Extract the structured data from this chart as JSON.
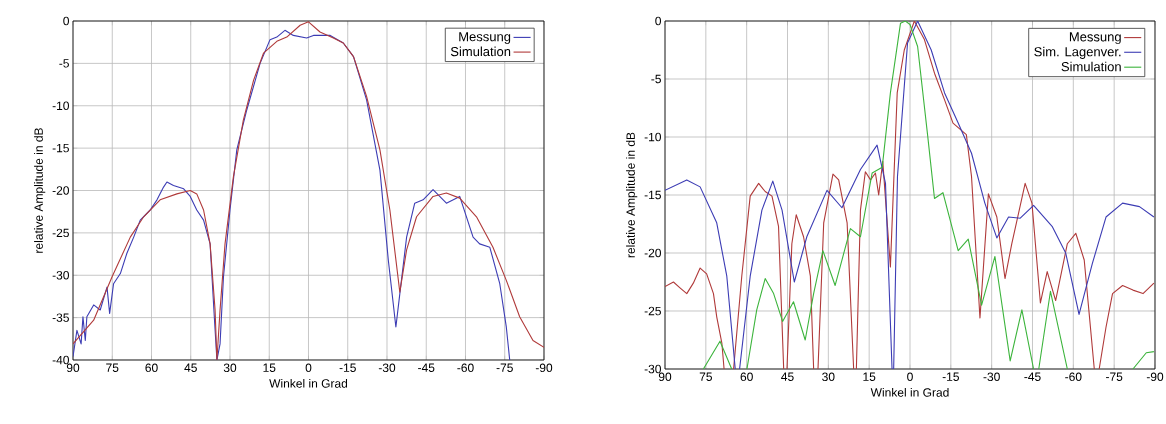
{
  "chart_data": [
    {
      "type": "line",
      "xlabel": "Winkel in Grad",
      "ylabel": "relative Amplitude in dB",
      "xlim": [
        90,
        -90
      ],
      "xticks": [
        90,
        75,
        60,
        45,
        30,
        15,
        0,
        -15,
        -30,
        -45,
        -60,
        -75,
        -90
      ],
      "ylim": [
        -40,
        0
      ],
      "yticks": [
        -40,
        -35,
        -30,
        -25,
        -20,
        -15,
        -10,
        -5,
        0
      ],
      "grid": true,
      "legend": "top right",
      "series": [
        {
          "name": "Messung",
          "color": "#3c3cb4",
          "x": [
            90,
            88.5,
            86.9,
            86.2,
            85.3,
            84.7,
            82.1,
            79.6,
            77,
            76,
            74.5,
            71.9,
            69.4,
            66.8,
            64.3,
            60.5,
            57.9,
            55.4,
            54.1,
            51.6,
            47.7,
            45.2,
            42.7,
            40.1,
            37.6,
            36,
            35,
            33.8,
            32.5,
            30,
            27.4,
            23.6,
            18.5,
            14.7,
            12.1,
            9,
            5.8,
            0.7,
            -1.9,
            -8.3,
            -13.3,
            -17.2,
            -22.2,
            -27.3,
            -30.5,
            -33.4,
            -34.9,
            -37.5,
            -40.6,
            -43.8,
            -47.6,
            -52.7,
            -57.8,
            -62.9,
            -65.4,
            -69.3,
            -73.1,
            -75.6,
            -76.9
          ],
          "values": [
            -39.6,
            -36.5,
            -38.1,
            -34.9,
            -37.7,
            -34.9,
            -33.5,
            -34.1,
            -31.4,
            -34.5,
            -31,
            -29.8,
            -27.4,
            -25.5,
            -23.5,
            -22.3,
            -21.1,
            -19.6,
            -19,
            -19.4,
            -19.8,
            -20.7,
            -22.3,
            -23.5,
            -26.3,
            -34.9,
            -40,
            -38.1,
            -30.2,
            -22.3,
            -15.2,
            -10.5,
            -5,
            -2.2,
            -1.9,
            -1.1,
            -1.7,
            -2,
            -1.7,
            -1.7,
            -2.6,
            -4.2,
            -9.3,
            -17.6,
            -28.2,
            -36.1,
            -32.2,
            -25.5,
            -21.5,
            -21.1,
            -19.9,
            -21.5,
            -20.7,
            -25.5,
            -26.3,
            -26.7,
            -31,
            -36.1,
            -40
          ]
        },
        {
          "name": "Simulation",
          "color": "#b03a3a",
          "x": [
            90,
            82.1,
            75.1,
            68.1,
            63,
            56.7,
            50.3,
            45.2,
            42.7,
            40.1,
            37.6,
            35.7,
            35,
            33.8,
            31.9,
            28.7,
            24.9,
            21,
            17.2,
            12.1,
            8.3,
            3.2,
            0,
            -4.4,
            -9.5,
            -13.3,
            -17.2,
            -22.2,
            -27.3,
            -31.1,
            -34.9,
            -37.5,
            -41.3,
            -47.6,
            -52.7,
            -57.8,
            -64.2,
            -70.5,
            -75.6,
            -80.7,
            -85.8,
            -90
          ],
          "values": [
            -38.1,
            -35.3,
            -30.2,
            -25.5,
            -23.1,
            -21.1,
            -20.4,
            -20,
            -20.4,
            -22.3,
            -26.3,
            -34.1,
            -40,
            -34.1,
            -26.3,
            -18.4,
            -11.7,
            -7,
            -3.8,
            -2.4,
            -1.9,
            -0.5,
            -0.1,
            -1.3,
            -2,
            -2.6,
            -4.2,
            -8.9,
            -15.2,
            -22.3,
            -32,
            -27,
            -23.1,
            -20.7,
            -20.3,
            -20.9,
            -23.1,
            -26.7,
            -30.6,
            -34.9,
            -37.7,
            -38.5
          ]
        }
      ]
    },
    {
      "type": "line",
      "xlabel": "Winkel in Grad",
      "ylabel": "relative Amplitude in dB",
      "xlim": [
        90,
        -90
      ],
      "xticks": [
        90,
        75,
        60,
        45,
        30,
        15,
        0,
        -15,
        -30,
        -45,
        -60,
        -75,
        -90
      ],
      "ylim": [
        -30,
        0
      ],
      "yticks": [
        -30,
        -25,
        -20,
        -15,
        -10,
        -5,
        0
      ],
      "grid": true,
      "legend": "top right",
      "series": [
        {
          "name": "Messung",
          "color": "#b03a3a",
          "x": [
            90,
            86.9,
            84.5,
            82,
            79.6,
            77.1,
            74.7,
            72.2,
            71,
            69.1,
            68.3,
            66.5,
            64.8,
            61.8,
            58.7,
            55.6,
            53.2,
            50.7,
            48.3,
            46.4,
            45.8,
            45.2,
            43.4,
            41.8,
            39.1,
            36.6,
            35.4,
            34.6,
            33.8,
            31.7,
            28.3,
            26.2,
            23.1,
            20.7,
            20.2,
            19.7,
            18.2,
            16.4,
            14.5,
            12.7,
            11.5,
            10,
            7.2,
            4.7,
            2.1,
            -1.6,
            -5.3,
            -9,
            -12.7,
            -15.8,
            -20.7,
            -22.6,
            -25.7,
            -28.8,
            -31.9,
            -34.9,
            -37.4,
            -42.3,
            -44.8,
            -47.9,
            -50.4,
            -53.5,
            -57.8,
            -60.9,
            -64,
            -67.7,
            -68.6,
            -69.5,
            -72,
            -74.4,
            -78.1,
            -81.9,
            -85.6,
            -89.6
          ],
          "values": [
            -22.9,
            -22.5,
            -23,
            -23.5,
            -22.6,
            -21.3,
            -21.8,
            -23.5,
            -25.5,
            -27.8,
            -30,
            null,
            -30,
            -22,
            -15.1,
            -14,
            -14.7,
            -15.1,
            -17.7,
            -30,
            null,
            -30,
            -19.2,
            -16.7,
            -18.6,
            -22,
            -30,
            null,
            -30,
            -17.4,
            -13.2,
            -13.7,
            -17.4,
            -30,
            null,
            -30,
            -16.3,
            -13,
            -13.7,
            -13.1,
            -15,
            -12.1,
            -21.2,
            -6.2,
            -2.5,
            0,
            -1.6,
            -4.5,
            -6.8,
            -8.8,
            -9.8,
            -13.4,
            -25.6,
            -14.9,
            -16.9,
            -22.2,
            -19.2,
            -14,
            -15.7,
            -24.3,
            -21.6,
            -24.1,
            -19.2,
            -18.3,
            -20.6,
            -30,
            null,
            -30,
            -26.4,
            -23.5,
            -22.8,
            -23.2,
            -23.5,
            -22.6
          ]
        },
        {
          "name": "Sim. Lagenver.",
          "color": "#3c3cb4",
          "x": [
            90,
            82,
            77.1,
            71,
            67.3,
            64.2,
            63.4,
            62.6,
            58.7,
            54.4,
            50.4,
            47,
            42.5,
            37.9,
            30.5,
            25,
            18.2,
            12.1,
            9,
            6.6,
            6.3,
            6.0,
            4.6,
            0.9,
            -2.8,
            -7.8,
            -12.7,
            -17.7,
            -22.6,
            -27.5,
            -31.9,
            -36.2,
            -40.5,
            -45.4,
            -52.2,
            -57.2,
            -62.1,
            -67,
            -72,
            -78.1,
            -84.3,
            -89.6
          ],
          "values": [
            -14.6,
            -13.7,
            -14.3,
            -17.4,
            -22,
            -30,
            null,
            -30,
            -22,
            -16.3,
            -13.8,
            -16.3,
            -22.5,
            -18.6,
            -14.6,
            -16.1,
            -12.8,
            -10.7,
            -14,
            -30,
            null,
            -30,
            -13.4,
            -1.9,
            0,
            -2.5,
            -6.2,
            -8.8,
            -11.4,
            -15.7,
            -18.7,
            -16.9,
            -17,
            -15.9,
            -17.7,
            -20,
            -25.3,
            -20.9,
            -16.9,
            -15.7,
            -16,
            -16.9
          ]
        },
        {
          "name": "Simulation",
          "color": "#3cb43c",
          "x": [
            75.9,
            69.8,
            65.5,
            62.7,
            59.9,
            56.3,
            53.2,
            50.1,
            46.8,
            42.8,
            38.5,
            35.4,
            32,
            27.5,
            21.9,
            18.2,
            13.9,
            10.2,
            7.2,
            3.5,
            1.7,
            0,
            -2.8,
            -6.5,
            -9,
            -12.1,
            -17.7,
            -21.4,
            -26.3,
            -31.2,
            -36.8,
            -41.1,
            -45.4,
            -46.4,
            -47.3,
            -51.6,
            -57.8,
            -70,
            -81.9,
            -86.8,
            -89.6
          ],
          "values": [
            -30,
            -27.6,
            -30,
            null,
            -30,
            -24.9,
            -22.2,
            -23.5,
            -25.9,
            -24.2,
            -27.5,
            -23.5,
            -19.8,
            -22.8,
            -17.9,
            -18.6,
            -13.1,
            -12.6,
            -6.2,
            -0.2,
            0,
            -0.3,
            -2.2,
            -9.9,
            -15.3,
            -14.8,
            -19.8,
            -18.8,
            -24.5,
            -20.3,
            -29.3,
            -24.9,
            -30,
            null,
            -30,
            -23.3,
            -30,
            null,
            -30,
            -28.6,
            -28.5
          ]
        }
      ]
    }
  ]
}
